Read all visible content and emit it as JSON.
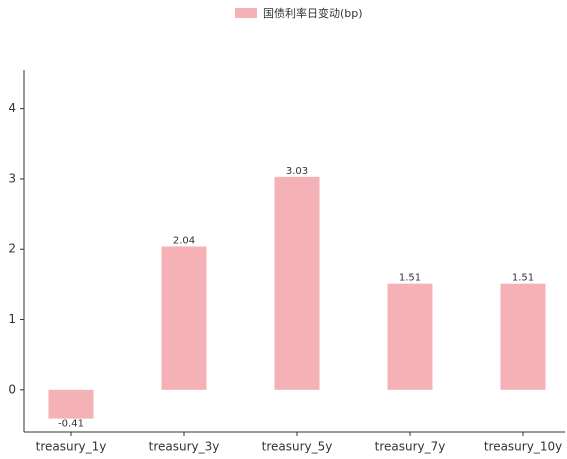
{
  "chart_data": {
    "type": "bar",
    "categories": [
      "treasury_1y",
      "treasury_3y",
      "treasury_5y",
      "treasury_7y",
      "treasury_10y"
    ],
    "series": [
      {
        "name": "国债利率日变动(bp)",
        "color": "#f4b2b6",
        "values": [
          -0.41,
          2.04,
          3.03,
          1.51,
          1.51
        ]
      }
    ],
    "ylim": [
      -0.6,
      4.55
    ],
    "yticks": [
      0,
      1,
      2,
      3,
      4
    ],
    "grid": false,
    "legend": "top"
  }
}
